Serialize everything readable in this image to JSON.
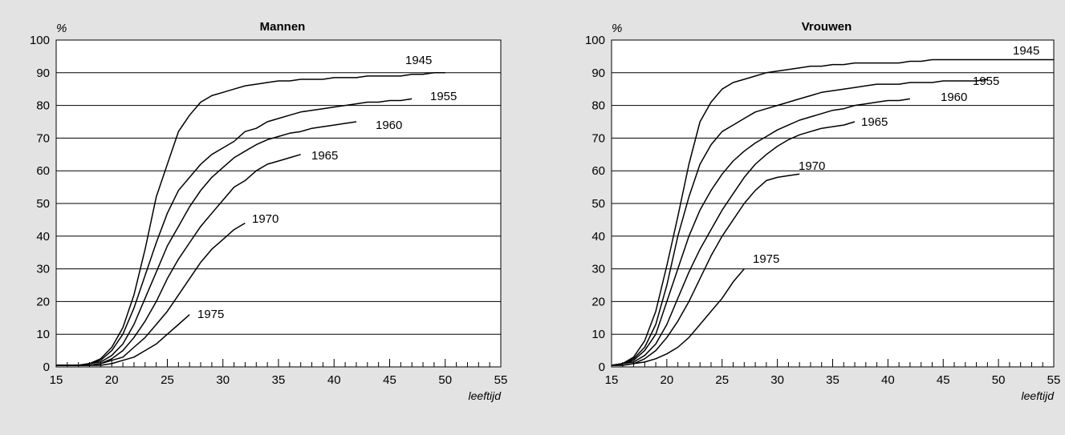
{
  "chart_data": [
    {
      "type": "line",
      "title": "Mannen",
      "ylabel": "%",
      "xlabel": "leeftijd",
      "xlim": [
        15,
        55
      ],
      "ylim": [
        0,
        100
      ],
      "xticks": [
        15,
        20,
        25,
        30,
        35,
        40,
        45,
        50,
        55
      ],
      "yticks": [
        0,
        10,
        20,
        30,
        40,
        50,
        60,
        70,
        80,
        90,
        100
      ],
      "grid": "horizontal",
      "legend": "inline labels at line ends",
      "series": [
        {
          "name": "1945",
          "x": [
            15,
            16,
            17,
            18,
            19,
            20,
            21,
            22,
            23,
            24,
            25,
            26,
            27,
            28,
            29,
            30,
            31,
            32,
            33,
            34,
            35,
            36,
            37,
            38,
            39,
            40,
            41,
            42,
            43,
            44,
            45,
            46,
            47,
            48,
            49,
            50
          ],
          "y": [
            0.5,
            0.5,
            0.5,
            1,
            2.5,
            6,
            12,
            22,
            36,
            52,
            62,
            72,
            77,
            81,
            83,
            84,
            85,
            86,
            86.5,
            87,
            87.5,
            87.5,
            88,
            88,
            88,
            88.5,
            88.5,
            88.5,
            89,
            89,
            89,
            89,
            89.5,
            89.5,
            90,
            90
          ]
        },
        {
          "name": "1955",
          "x": [
            15,
            16,
            17,
            18,
            19,
            20,
            21,
            22,
            23,
            24,
            25,
            26,
            27,
            28,
            29,
            30,
            31,
            32,
            33,
            34,
            35,
            36,
            37,
            38,
            39,
            40,
            41,
            42,
            43,
            44,
            45,
            46,
            47
          ],
          "y": [
            0.5,
            0.5,
            0.5,
            1,
            2,
            5,
            10,
            18,
            28,
            38,
            47,
            54,
            58,
            62,
            65,
            67,
            69,
            72,
            73,
            75,
            76,
            77,
            78,
            78.5,
            79,
            79.5,
            80,
            80.5,
            81,
            81,
            81.5,
            81.5,
            82
          ]
        },
        {
          "name": "1960",
          "x": [
            15,
            16,
            17,
            18,
            19,
            20,
            21,
            22,
            23,
            24,
            25,
            26,
            27,
            28,
            29,
            30,
            31,
            32,
            33,
            34,
            35,
            36,
            37,
            38,
            39,
            40,
            41,
            42
          ],
          "y": [
            0.5,
            0.5,
            0.5,
            1,
            1.5,
            3.5,
            7,
            13,
            21,
            29,
            37,
            43,
            49,
            54,
            58,
            61,
            64,
            66,
            68,
            69.5,
            70.5,
            71.5,
            72,
            73,
            73.5,
            74,
            74.5,
            75
          ]
        },
        {
          "name": "1965",
          "x": [
            15,
            16,
            17,
            18,
            19,
            20,
            21,
            22,
            23,
            24,
            25,
            26,
            27,
            28,
            29,
            30,
            31,
            32,
            33,
            34,
            35,
            36,
            37
          ],
          "y": [
            0.5,
            0.5,
            0.5,
            0.5,
            1,
            2.5,
            5,
            9,
            14,
            20,
            27,
            33,
            38,
            43,
            47,
            51,
            55,
            57,
            60,
            62,
            63,
            64,
            65
          ]
        },
        {
          "name": "1970",
          "x": [
            15,
            16,
            17,
            18,
            19,
            20,
            21,
            22,
            23,
            24,
            25,
            26,
            27,
            28,
            29,
            30,
            31,
            32
          ],
          "y": [
            0.5,
            0.5,
            0.5,
            0.5,
            1,
            2,
            3,
            6,
            9,
            13,
            17,
            22,
            27,
            32,
            36,
            39,
            42,
            44
          ]
        },
        {
          "name": "1975",
          "x": [
            15,
            16,
            17,
            18,
            19,
            20,
            21,
            22,
            23,
            24,
            25,
            26,
            27
          ],
          "y": [
            0.5,
            0.5,
            0.5,
            0.5,
            0.5,
            1,
            2,
            3,
            5,
            7,
            10,
            13,
            16
          ]
        }
      ]
    },
    {
      "type": "line",
      "title": "Vrouwen",
      "ylabel": "%",
      "xlabel": "leeftijd",
      "xlim": [
        15,
        55
      ],
      "ylim": [
        0,
        100
      ],
      "xticks": [
        15,
        20,
        25,
        30,
        35,
        40,
        45,
        50,
        55
      ],
      "yticks": [
        0,
        10,
        20,
        30,
        40,
        50,
        60,
        70,
        80,
        90,
        100
      ],
      "grid": "horizontal",
      "legend": "inline labels at line ends",
      "series": [
        {
          "name": "1945",
          "x": [
            15,
            16,
            17,
            18,
            19,
            20,
            21,
            22,
            23,
            24,
            25,
            26,
            27,
            28,
            29,
            30,
            31,
            32,
            33,
            34,
            35,
            36,
            37,
            38,
            39,
            40,
            41,
            42,
            43,
            44,
            45,
            46,
            47,
            48,
            49,
            50,
            51,
            52,
            53,
            54,
            55
          ],
          "y": [
            0.5,
            1,
            3,
            8,
            17,
            31,
            46,
            62,
            75,
            81,
            85,
            87,
            88,
            89,
            90,
            90.5,
            91,
            91.5,
            92,
            92,
            92.5,
            92.5,
            93,
            93,
            93,
            93,
            93,
            93.5,
            93.5,
            94,
            94,
            94,
            94,
            94,
            94,
            94,
            94,
            94,
            94,
            94,
            94
          ]
        },
        {
          "name": "1955",
          "x": [
            15,
            16,
            17,
            18,
            19,
            20,
            21,
            22,
            23,
            24,
            25,
            26,
            27,
            28,
            29,
            30,
            31,
            32,
            33,
            34,
            35,
            36,
            37,
            38,
            39,
            40,
            41,
            42,
            43,
            44,
            45,
            46,
            47,
            48,
            49
          ],
          "y": [
            0.5,
            1,
            2.5,
            6,
            13,
            25,
            40,
            52,
            62,
            68,
            72,
            74,
            76,
            78,
            79,
            80,
            81,
            82,
            83,
            84,
            84.5,
            85,
            85.5,
            86,
            86.5,
            86.5,
            86.5,
            87,
            87,
            87,
            87.5,
            87.5,
            87.5,
            87.5,
            88
          ]
        },
        {
          "name": "1960",
          "x": [
            15,
            16,
            17,
            18,
            19,
            20,
            21,
            22,
            23,
            24,
            25,
            26,
            27,
            28,
            29,
            30,
            31,
            32,
            33,
            34,
            35,
            36,
            37,
            38,
            39,
            40,
            41,
            42
          ],
          "y": [
            0.5,
            1,
            2,
            5,
            10,
            20,
            30,
            40,
            48,
            54,
            59,
            63,
            66,
            68.5,
            70.5,
            72.5,
            74,
            75.5,
            76.5,
            77.5,
            78.5,
            79,
            80,
            80.5,
            81,
            81.5,
            81.5,
            82
          ]
        },
        {
          "name": "1965",
          "x": [
            15,
            16,
            17,
            18,
            19,
            20,
            21,
            22,
            23,
            24,
            25,
            26,
            27,
            28,
            29,
            30,
            31,
            32,
            33,
            34,
            35,
            36,
            37
          ],
          "y": [
            0.5,
            1,
            1.5,
            3.5,
            7,
            13,
            21,
            29,
            36,
            42,
            48,
            53,
            58,
            62,
            65,
            67.5,
            69.5,
            71,
            72,
            73,
            73.5,
            74,
            75
          ]
        },
        {
          "name": "1970",
          "x": [
            15,
            16,
            17,
            18,
            19,
            20,
            21,
            22,
            23,
            24,
            25,
            26,
            27,
            28,
            29,
            30,
            31,
            32
          ],
          "y": [
            0.5,
            0.5,
            1,
            2.5,
            5,
            9,
            14,
            20,
            27,
            34,
            40,
            45,
            50,
            54,
            57,
            58,
            58.5,
            59
          ]
        },
        {
          "name": "1975",
          "x": [
            15,
            16,
            17,
            18,
            19,
            20,
            21,
            22,
            23,
            24,
            25,
            26,
            27
          ],
          "y": [
            0.5,
            0.5,
            1,
            1.5,
            2.5,
            4,
            6,
            9,
            13,
            17,
            21,
            26,
            30
          ]
        }
      ]
    }
  ]
}
